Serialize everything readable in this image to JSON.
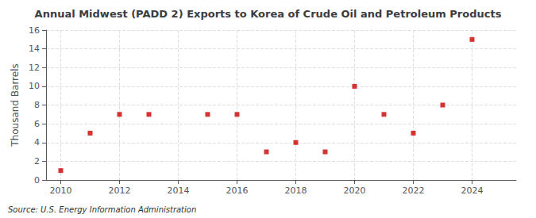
{
  "chart_data": {
    "type": "scatter",
    "title": "Annual Midwest (PADD 2) Exports to Korea of Crude Oil and Petroleum Products",
    "ylabel": "Thousand Barrels",
    "annotations": [
      "Source: U.S. Energy Information Administration"
    ],
    "x": [
      2010,
      2011,
      2012,
      2013,
      2015,
      2016,
      2017,
      2018,
      2019,
      2020,
      2021,
      2022,
      2023,
      2024
    ],
    "values": [
      1,
      5,
      7,
      7,
      7,
      7,
      3,
      4,
      3,
      10,
      7,
      5,
      8,
      15
    ],
    "color": "#cc0000",
    "marker": "square",
    "xlim": [
      2009.5,
      2025.5
    ],
    "xticks": [
      2010,
      2012,
      2014,
      2016,
      2018,
      2020,
      2022,
      2024
    ],
    "ylim": [
      0,
      16
    ],
    "yticks": [
      0,
      2,
      4,
      6,
      8,
      10,
      12,
      14,
      16
    ],
    "grid": true
  }
}
